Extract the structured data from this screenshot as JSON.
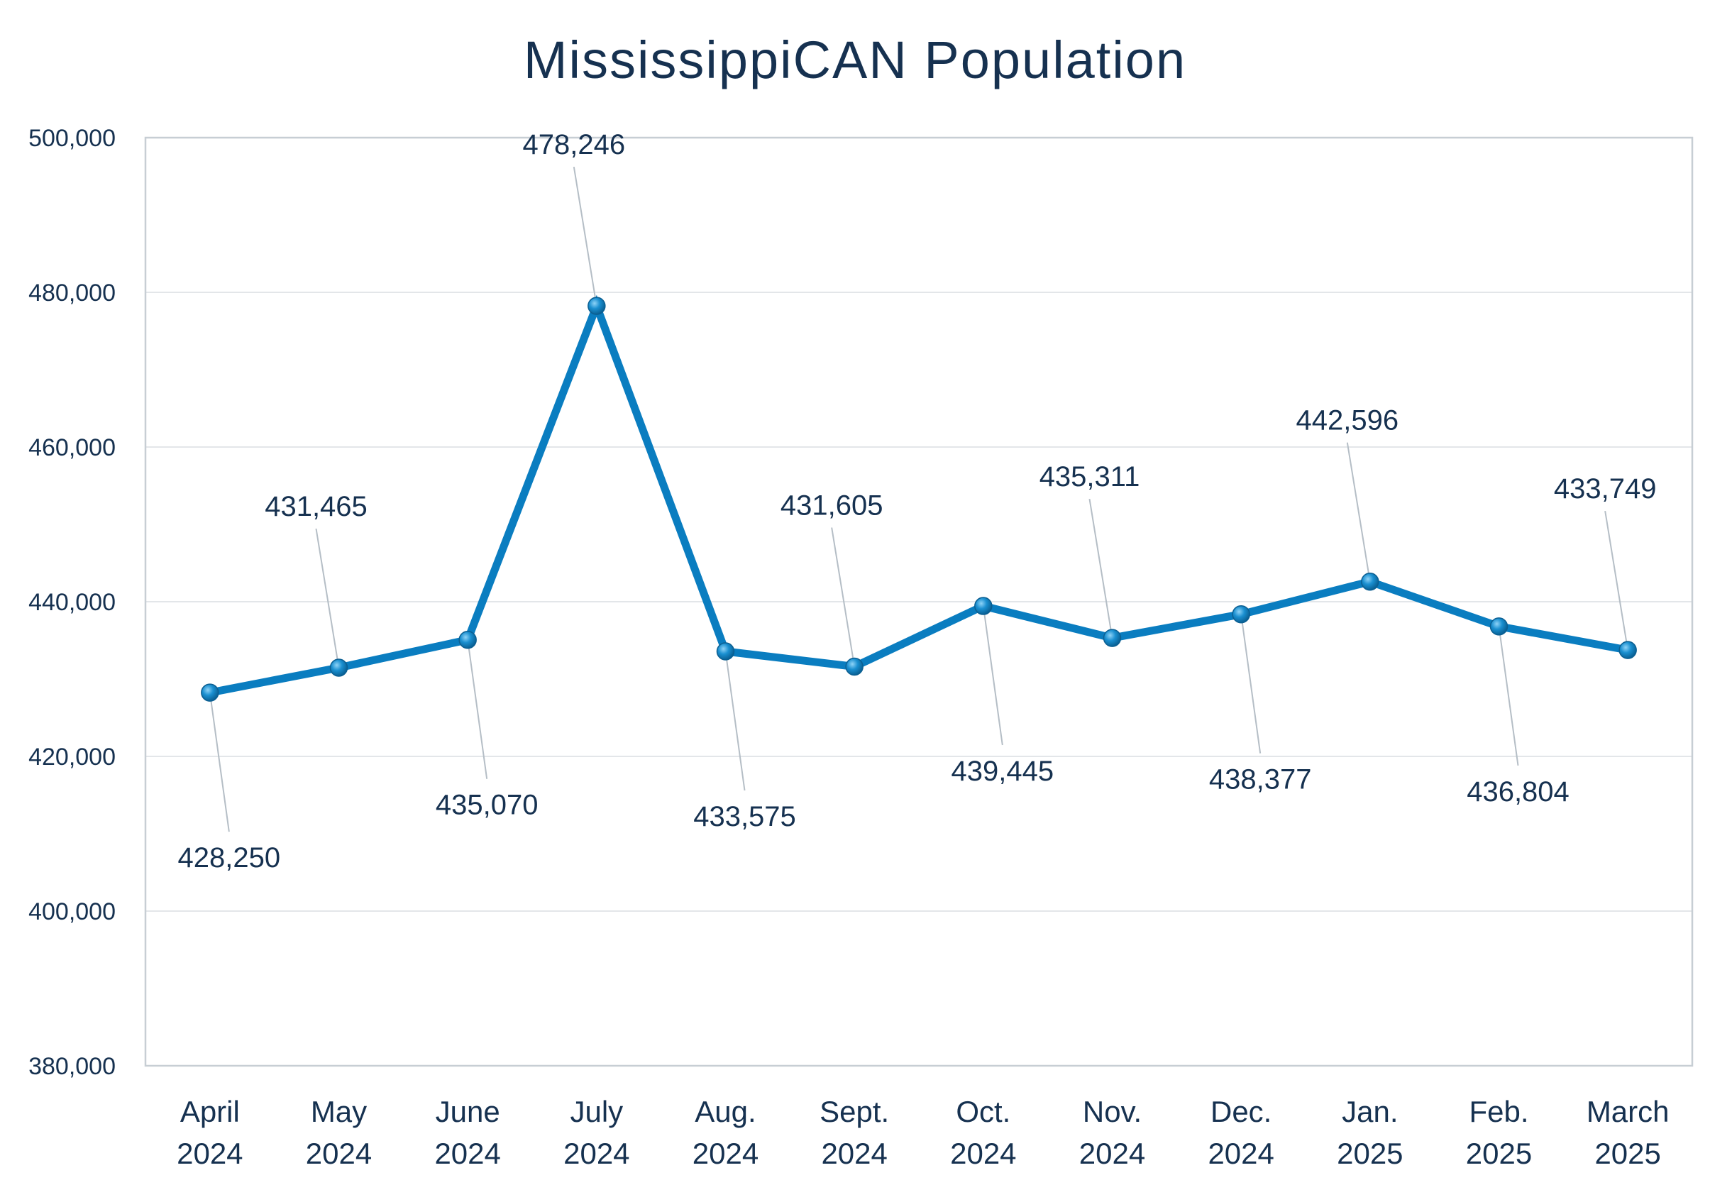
{
  "chart_data": {
    "type": "line",
    "title": "MississippiCAN Population",
    "xlabel": "",
    "ylabel": "",
    "categories": [
      [
        "April",
        "2024"
      ],
      [
        "May",
        "2024"
      ],
      [
        "June",
        "2024"
      ],
      [
        "July",
        "2024"
      ],
      [
        "Aug.",
        "2024"
      ],
      [
        "Sept.",
        "2024"
      ],
      [
        "Oct.",
        "2024"
      ],
      [
        "Nov.",
        "2024"
      ],
      [
        "Dec.",
        "2024"
      ],
      [
        "Jan.",
        "2025"
      ],
      [
        "Feb.",
        "2025"
      ],
      [
        "March",
        "2025"
      ]
    ],
    "series": [
      {
        "values": [
          428250,
          431465,
          435070,
          478246,
          433575,
          431605,
          439445,
          435311,
          438377,
          442596,
          436804,
          433749
        ],
        "labels": [
          "428,250",
          "431,465",
          "435,070",
          "478,246",
          "433,575",
          "431,605",
          "439,445",
          "435,311",
          "438,377",
          "442,596",
          "436,804",
          "433,749"
        ],
        "label_side": [
          "below",
          "above",
          "below",
          "above",
          "below",
          "above",
          "below",
          "above",
          "below",
          "above",
          "below",
          "above"
        ]
      }
    ],
    "ylim": [
      380000,
      500000
    ],
    "yticks": [
      380000,
      400000,
      420000,
      440000,
      460000,
      480000,
      500000
    ],
    "ytick_labels": [
      "380,000",
      "400,000",
      "420,000",
      "440,000",
      "460,000",
      "480,000",
      "500,000"
    ],
    "grid": true,
    "legend": "none",
    "colors": {
      "line": "#0a7dc0",
      "marker": "#1a8fd0",
      "text": "#163150",
      "grid": "#e3e6e9",
      "frame": "#c7ced4",
      "leader": "#b5bec6"
    }
  }
}
